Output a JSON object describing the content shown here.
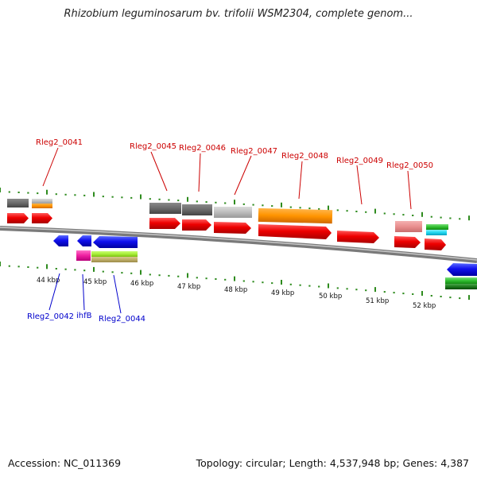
{
  "title": "Rhizobium leguminosarum bv. trifolii WSM2304, complete genom...",
  "footer": {
    "accession": "Accession: NC_011369",
    "info": "Topology: circular; Length: 4,537,948 bp; Genes: 4,387"
  },
  "colors": {
    "label_forward": "#cc0000",
    "label_reverse": "#0000cc",
    "tick": "#2e8b1e",
    "backbone": "#888888"
  },
  "scale": {
    "ticks": [
      "44 kbp",
      "45 kbp",
      "46 kbp",
      "47 kbp",
      "48 kbp",
      "49 kbp",
      "50 kbp",
      "51 kbp",
      "52 kbp"
    ]
  },
  "genes_forward": [
    {
      "name": "Rleg2_0041"
    },
    {
      "name": "Rleg2_0045"
    },
    {
      "name": "Rleg2_0046"
    },
    {
      "name": "Rleg2_0047"
    },
    {
      "name": "Rleg2_0048"
    },
    {
      "name": "Rleg2_0049"
    },
    {
      "name": "Rleg2_0050"
    }
  ],
  "genes_reverse": [
    {
      "name": "Rleg2_0042"
    },
    {
      "name": "ihfB"
    },
    {
      "name": "Rleg2_0044"
    }
  ]
}
